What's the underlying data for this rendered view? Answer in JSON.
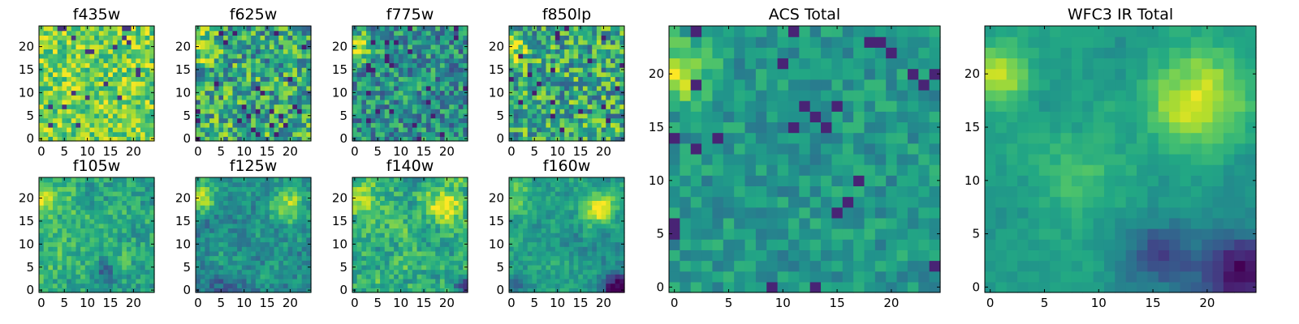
{
  "chart_data": [
    {
      "type": "heatmap",
      "title": "f435w",
      "grid_size": 25,
      "xticks": [
        0,
        5,
        10,
        15,
        20
      ],
      "yticks": [
        0,
        5,
        10,
        15,
        20
      ],
      "colormap": "viridis",
      "style": "noisy-bright",
      "seed": 11
    },
    {
      "type": "heatmap",
      "title": "f625w",
      "grid_size": 25,
      "xticks": [
        0,
        5,
        10,
        15,
        20
      ],
      "yticks": [
        0,
        5,
        10,
        15,
        20
      ],
      "colormap": "viridis",
      "style": "noisy-source",
      "seed": 23
    },
    {
      "type": "heatmap",
      "title": "f775w",
      "grid_size": 25,
      "xticks": [
        0,
        5,
        10,
        15,
        20
      ],
      "yticks": [
        0,
        5,
        10,
        15,
        20
      ],
      "colormap": "viridis",
      "style": "noisy-source-dim",
      "seed": 37
    },
    {
      "type": "heatmap",
      "title": "f850lp",
      "grid_size": 25,
      "xticks": [
        0,
        5,
        10,
        15,
        20
      ],
      "yticks": [
        0,
        5,
        10,
        15,
        20
      ],
      "colormap": "viridis",
      "style": "noisy-source",
      "seed": 41
    },
    {
      "type": "heatmap",
      "title": "f105w",
      "grid_size": 25,
      "xticks": [
        0,
        5,
        10,
        15,
        20
      ],
      "yticks": [
        0,
        5,
        10,
        15,
        20
      ],
      "colormap": "viridis",
      "style": "smooth-left",
      "seed": 53
    },
    {
      "type": "heatmap",
      "title": "f125w",
      "grid_size": 25,
      "xticks": [
        0,
        5,
        10,
        15,
        20
      ],
      "yticks": [
        0,
        5,
        10,
        15,
        20
      ],
      "colormap": "viridis",
      "style": "smooth-two",
      "seed": 67
    },
    {
      "type": "heatmap",
      "title": "f140w",
      "grid_size": 25,
      "xticks": [
        0,
        5,
        10,
        15,
        20
      ],
      "yticks": [
        0,
        5,
        10,
        15,
        20
      ],
      "colormap": "viridis",
      "style": "smooth-two-bright",
      "seed": 71
    },
    {
      "type": "heatmap",
      "title": "f160w",
      "grid_size": 25,
      "xticks": [
        0,
        5,
        10,
        15,
        20
      ],
      "yticks": [
        0,
        5,
        10,
        15,
        20
      ],
      "colormap": "viridis",
      "style": "smooth-two-dark",
      "seed": 83
    },
    {
      "type": "heatmap",
      "title": "ACS Total",
      "grid_size": 25,
      "xticks": [
        0,
        5,
        10,
        15,
        20
      ],
      "yticks": [
        0,
        5,
        10,
        15,
        20
      ],
      "colormap": "viridis",
      "style": "acs-total",
      "seed": 97
    },
    {
      "type": "heatmap",
      "title": "WFC3 IR Total",
      "grid_size": 25,
      "xticks": [
        0,
        5,
        10,
        15,
        20
      ],
      "yticks": [
        0,
        5,
        10,
        15,
        20
      ],
      "colormap": "viridis",
      "style": "ir-total",
      "seed": 101
    }
  ]
}
